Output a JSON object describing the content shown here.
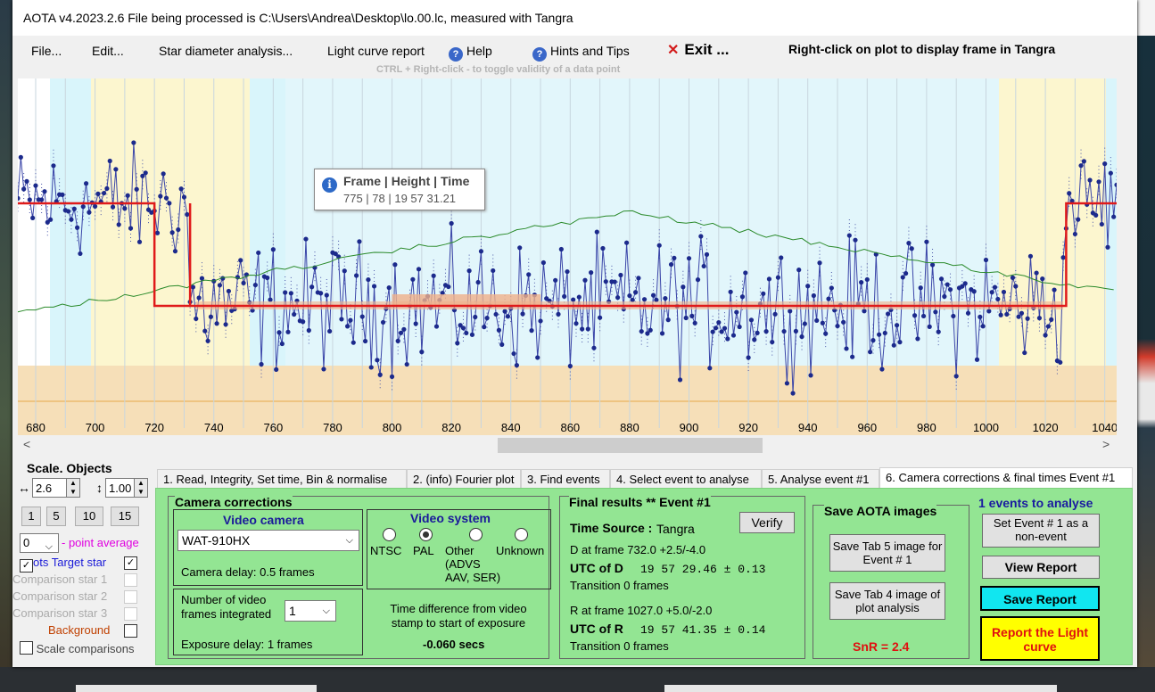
{
  "window": {
    "title": "AOTA v4.2023.2.6    File being processed is C:\\Users\\Andrea\\Desktop\\lo.00.lc, measured with Tangra"
  },
  "menu": {
    "file": "File...",
    "edit": "Edit...",
    "star_diameter": "Star diameter analysis...",
    "light_curve_report": "Light curve report",
    "help": "Help",
    "hints": "Hints and Tips",
    "exit": "Exit ...",
    "right_click_hint": "Right-click on plot to display frame in Tangra",
    "ctrl_hint": "CTRL + Right-click  -  to toggle validity of a data point"
  },
  "tooltip": {
    "header": "Frame | Height | Time",
    "value": "775 | 78 | 19 57 31.21"
  },
  "chart_data": {
    "type": "line",
    "x_ticks": [
      "680",
      "700",
      "720",
      "740",
      "760",
      "780",
      "800",
      "820",
      "840",
      "860",
      "880",
      "900",
      "920",
      "940",
      "960",
      "980",
      "1000",
      "1020",
      "1040"
    ],
    "xlim": [
      674,
      1044
    ],
    "baseline_before_D": 1.0,
    "event_level": 0.22,
    "baseline_after_R": 1.0,
    "D_frame": 732.0,
    "R_frame": 1027.0
  },
  "scale": {
    "title": "Scale.  Objects",
    "x_value": "2.6",
    "y_value": "1.00",
    "buttons": [
      "1",
      "5",
      "10",
      "15"
    ],
    "avg_value": "0",
    "avg_label": "- point average",
    "items": [
      {
        "label": "ots  Target star",
        "checked": true
      },
      {
        "label": "Comparison star 1",
        "checked": false
      },
      {
        "label": "Comparison star 2",
        "checked": false
      },
      {
        "label": "Comparison star 3",
        "checked": false
      },
      {
        "label": "Background",
        "checked": false
      },
      {
        "label": "Scale comparisons",
        "checked": false
      }
    ]
  },
  "tabs": [
    "1.  Read, Integrity, Set time, Bin & normalise",
    "2. (info)  Fourier plot",
    "3. Find events",
    "4. Select event to analyse",
    "5. Analyse event #1",
    "6. Camera corrections & final times Event #1"
  ],
  "camera": {
    "title": "Camera corrections",
    "video_camera_label": "Video camera",
    "camera_model": "WAT-910HX",
    "camera_delay": "Camera delay: 0.5 frames",
    "frames_integrated_label": "Number of video frames integrated",
    "frames_integrated_value": "1",
    "exposure_delay": "Exposure delay: 1 frames",
    "video_system_label": "Video system",
    "systems": [
      "NTSC",
      "PAL",
      "Other (ADVS AAV, SER)",
      "Unknown"
    ],
    "selected_system": "PAL",
    "time_diff_label": "Time difference from video stamp to start of exposure",
    "time_diff_value": "-0.060 secs"
  },
  "final": {
    "title": "Final results  **  Event #1",
    "time_source_label": "Time Source :",
    "time_source_value": "Tangra",
    "verify": "Verify",
    "d_line": "D  at frame 732.0  +2.5/-4.0",
    "utc_d_label": "UTC of D",
    "utc_d_value": "19 57 29.46  ± 0.13",
    "transition_d": "Transition  0 frames",
    "r_line": "R  at frame 1027.0  +5.0/-2.0",
    "utc_r_label": "UTC of R",
    "utc_r_value": "19 57 41.35  ± 0.14",
    "transition_r": "Transition  0 frames"
  },
  "save": {
    "title": "Save AOTA images",
    "tab5": "Save Tab 5 image for Event # 1",
    "tab4": "Save Tab 4 image of plot analysis",
    "snr": "SnR = 2.4"
  },
  "events": {
    "title": "1  events to analyse",
    "set_nonevent": "Set Event # 1 as a non-event",
    "view_report": "View Report",
    "save_report": "Save Report",
    "report_lc": "Report the Light curve"
  }
}
